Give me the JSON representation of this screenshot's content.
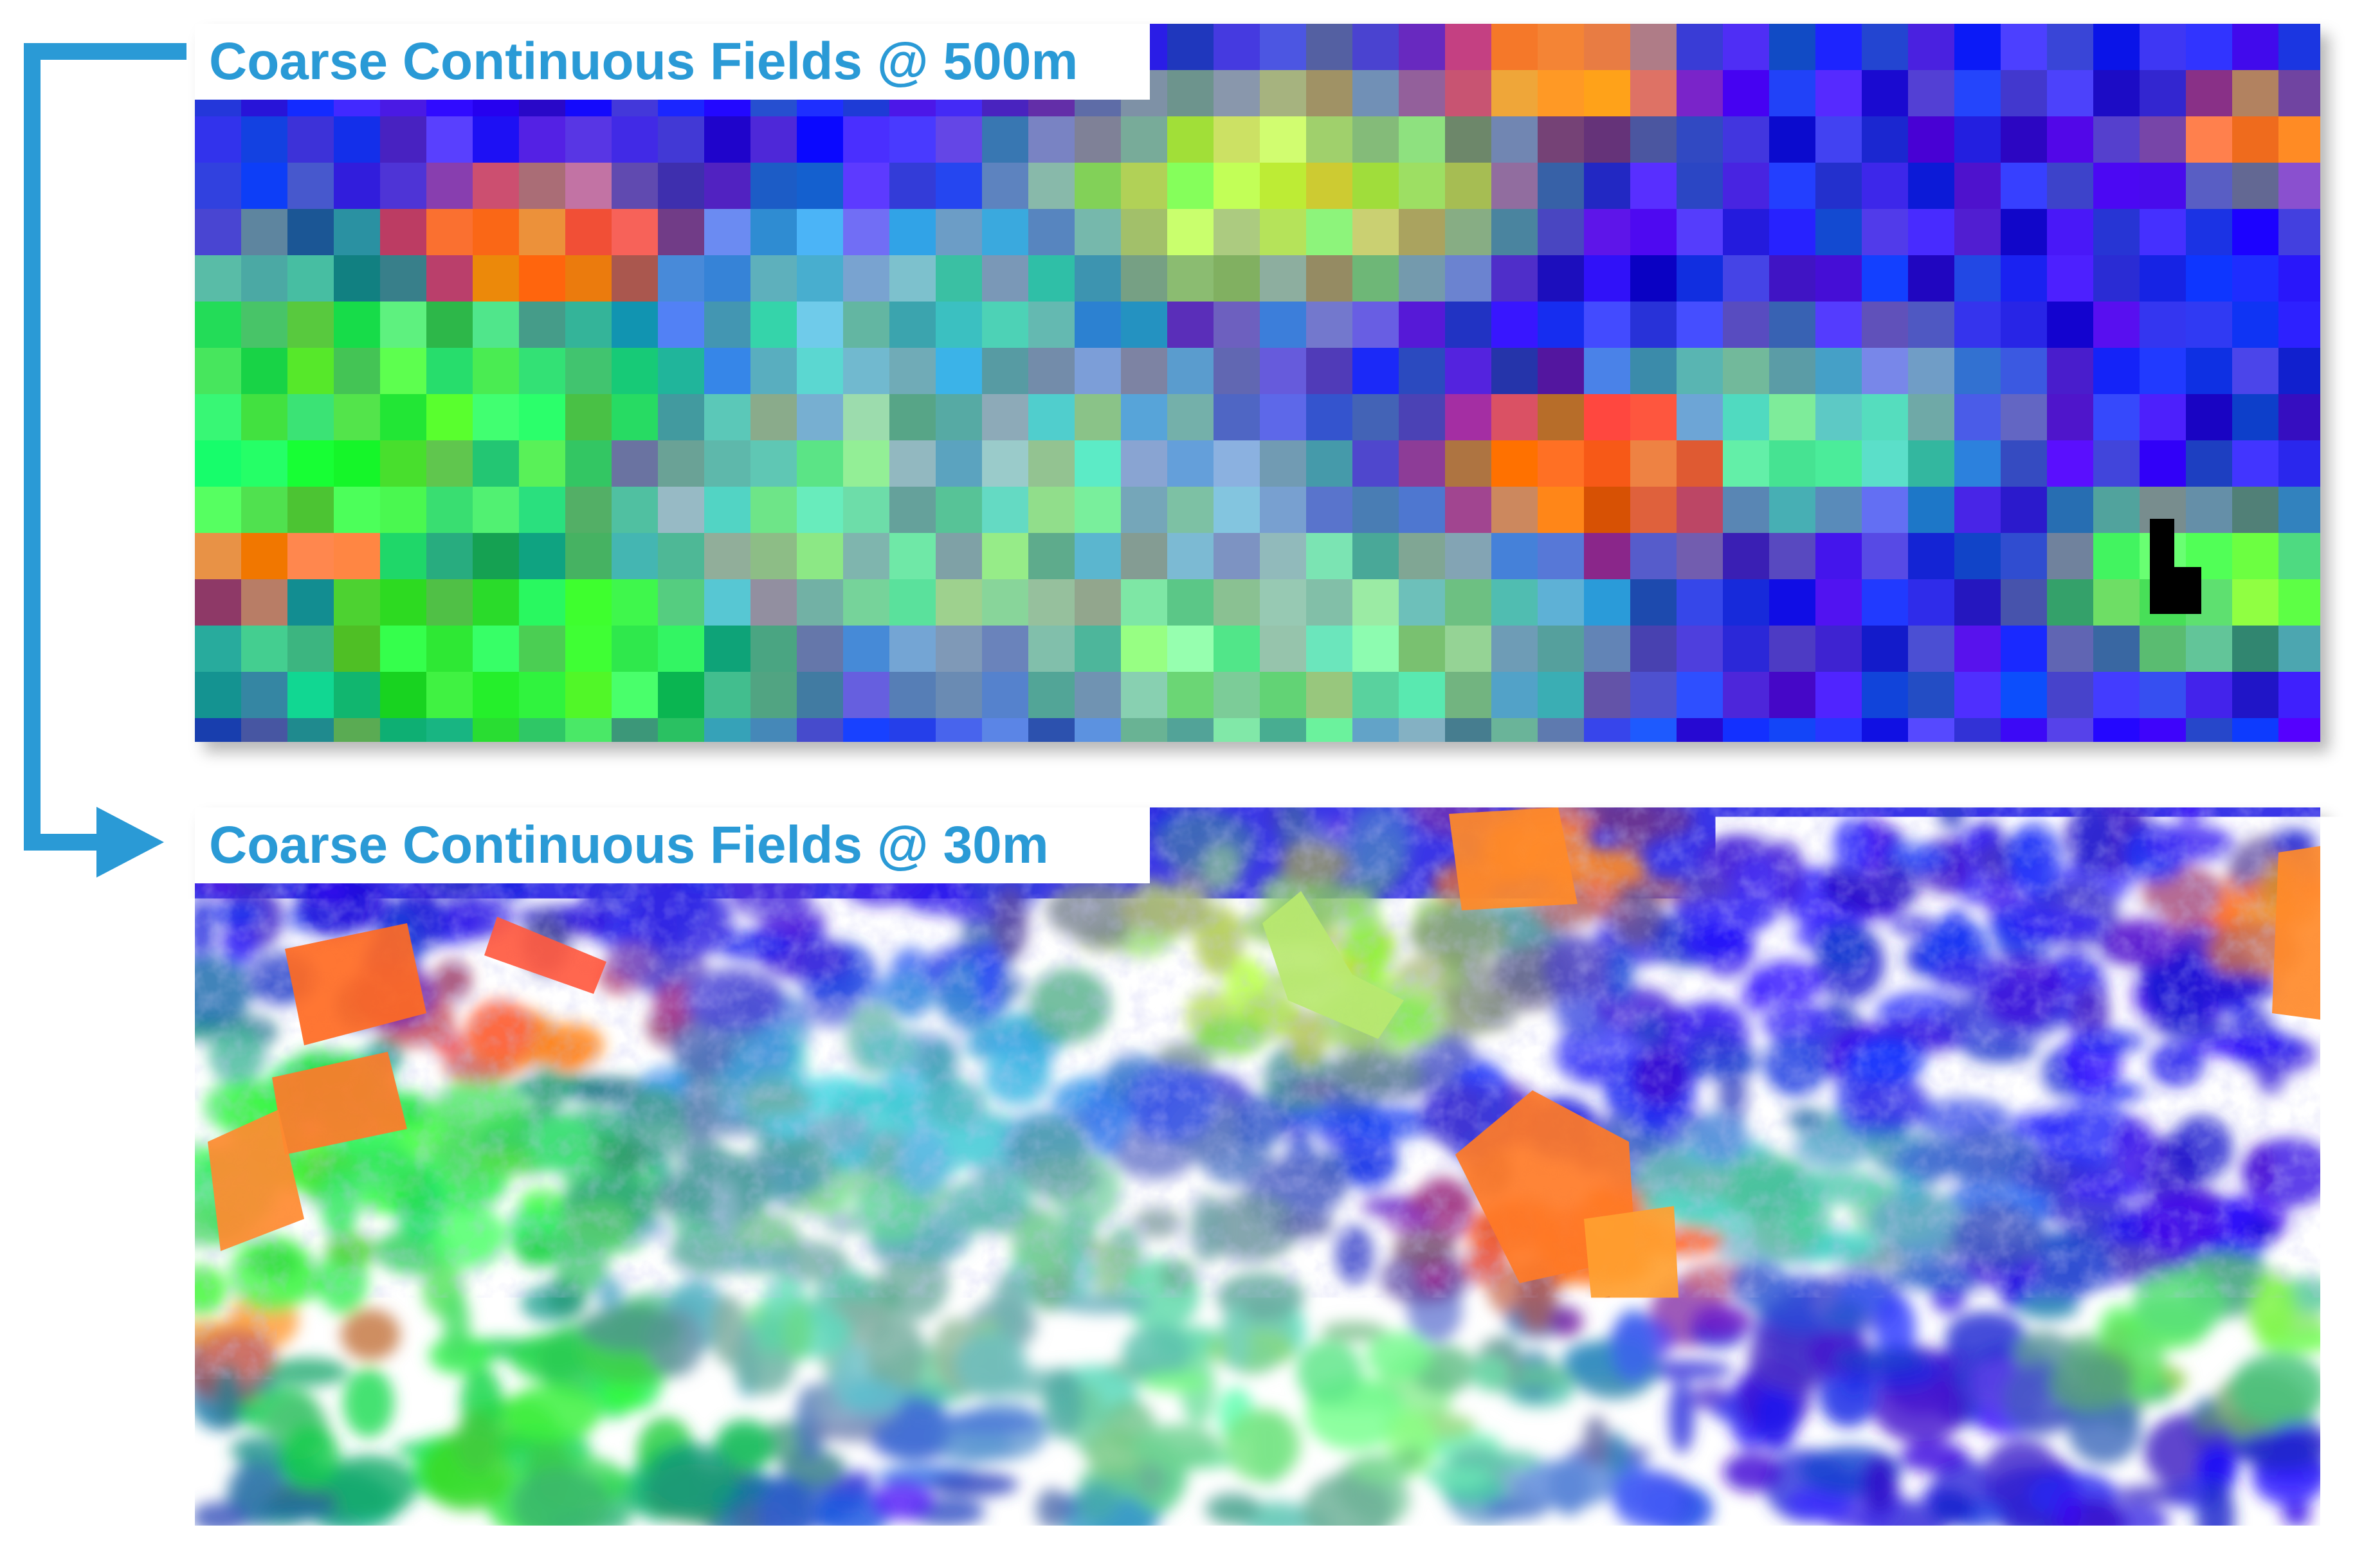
{
  "panels": {
    "coarse": {
      "label": "Coarse Continuous Fields @ 500m"
    },
    "fine": {
      "label": "Coarse Continuous Fields @ 30m"
    }
  },
  "colors": {
    "label_text": "#2a9ad6",
    "connector": "#2a9ad6",
    "base_blue": "#2d2fe6",
    "green": "#3cf04a",
    "orange": "#ff7a1e",
    "teal": "#5fc8b0",
    "mask": "#000000"
  },
  "icons": {
    "connector": "elbow-arrow-down-right"
  }
}
